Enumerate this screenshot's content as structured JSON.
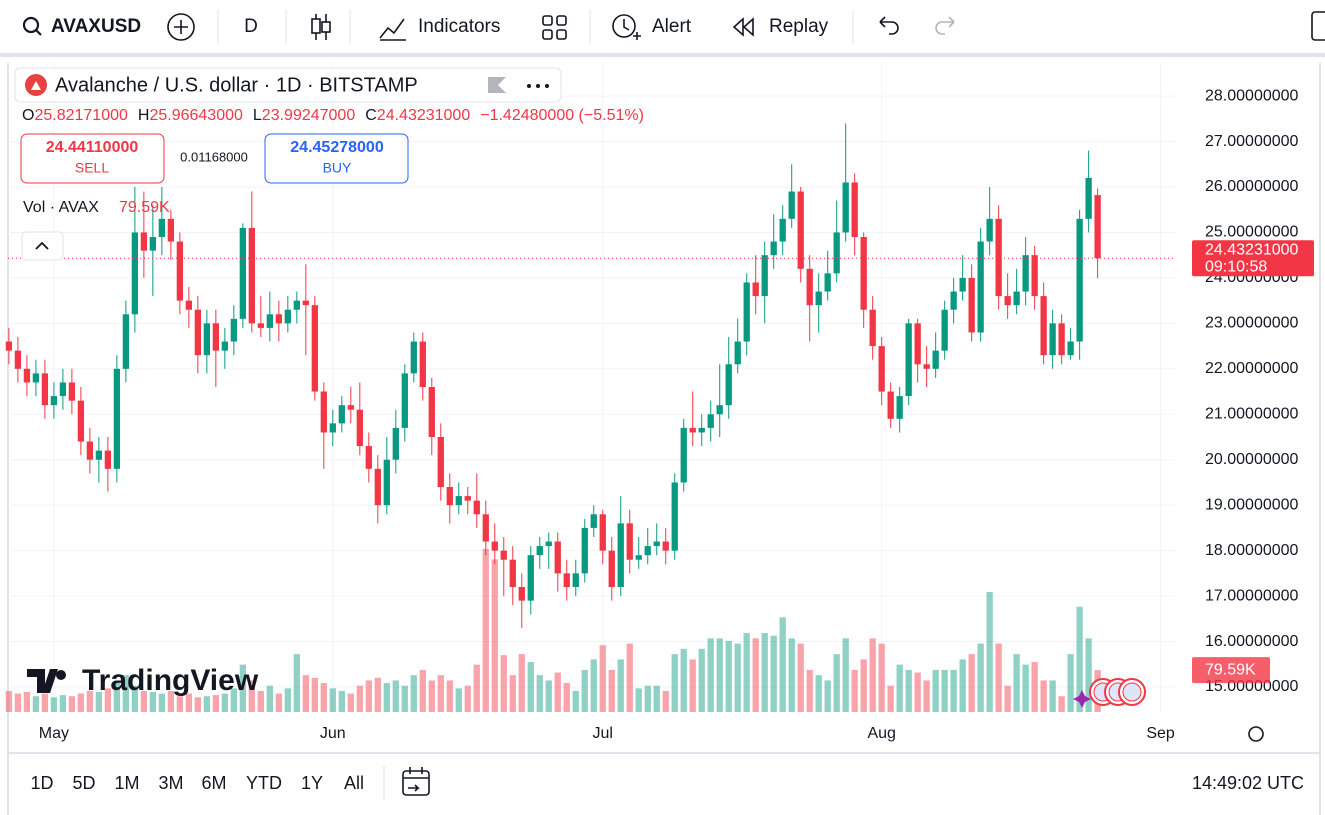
{
  "toolbar": {
    "symbol": "AVAXUSD",
    "interval": "D",
    "indicators": "Indicators",
    "alert": "Alert",
    "replay": "Replay"
  },
  "legend": {
    "title": "Avalanche / U.S. dollar · 1D · BITSTAMP",
    "ohlc": [
      {
        "key": "O",
        "value": "25.82171000"
      },
      {
        "key": "H",
        "value": "25.96643000"
      },
      {
        "key": "L",
        "value": "23.99247000"
      },
      {
        "key": "C",
        "value": "24.43231000"
      }
    ],
    "change": "−1.42480000 (−5.51%)",
    "sell_price": "24.44110000",
    "sell": "SELL",
    "spread": "0.01168000",
    "buy_price": "24.45278000",
    "buy": "BUY",
    "volume_name": "Vol · AVAX",
    "volume_value": "79.59K"
  },
  "watermark": "TradingView",
  "bottom_bar": {
    "ranges": [
      "1D",
      "5D",
      "1M",
      "3M",
      "6M",
      "YTD",
      "1Y",
      "All"
    ],
    "clock": "14:49:02 UTC"
  },
  "chart_data": {
    "type": "candlestick",
    "up_color": "#089981",
    "down_color": "#f23645",
    "open": [
      22.6,
      22.4,
      22.0,
      21.7,
      21.9,
      21.2,
      21.4,
      21.7,
      21.3,
      20.4,
      20.0,
      20.2,
      19.8,
      22.0,
      23.2,
      25.0,
      24.6,
      24.9,
      25.3,
      24.8,
      23.5,
      23.3,
      22.3,
      23.0,
      22.4,
      22.6,
      23.1,
      25.1,
      23.0,
      22.9,
      23.2,
      23.0,
      23.3,
      23.5,
      23.4,
      21.5,
      20.6,
      20.8,
      21.2,
      21.1,
      20.3,
      19.8,
      19.0,
      20.0,
      20.7,
      21.9,
      22.6,
      21.6,
      20.5,
      19.4,
      19.0,
      19.2,
      19.1,
      18.8,
      18.2,
      18.0,
      17.8,
      17.2,
      16.9,
      17.9,
      18.1,
      18.2,
      17.5,
      17.2,
      17.5,
      18.5,
      18.8,
      18.0,
      17.2,
      18.6,
      17.8,
      17.9,
      18.1,
      18.2,
      18.0,
      19.5,
      20.7,
      20.6,
      20.7,
      21.0,
      21.2,
      22.1,
      22.6,
      23.9,
      23.6,
      24.5,
      24.8,
      25.3,
      25.9,
      24.2,
      23.4,
      23.7,
      24.1,
      25.0,
      26.1,
      24.9,
      23.3,
      22.5,
      21.5,
      20.9,
      21.4,
      23.0,
      22.1,
      22.0,
      22.4,
      23.3,
      23.7,
      24.0,
      22.8,
      24.8,
      25.3,
      23.6,
      23.4,
      23.7,
      24.5,
      23.6,
      22.3,
      23.0,
      22.3,
      22.6,
      25.3,
      25.82171
    ],
    "high": [
      22.9,
      22.7,
      22.3,
      22.2,
      22.2,
      21.7,
      22.0,
      22.0,
      21.6,
      20.7,
      20.5,
      20.5,
      22.3,
      23.5,
      26.0,
      25.9,
      25.6,
      26.0,
      25.5,
      25.0,
      23.8,
      23.6,
      23.3,
      23.3,
      22.9,
      23.4,
      25.2,
      25.9,
      23.6,
      23.7,
      23.5,
      23.6,
      23.7,
      24.3,
      23.6,
      21.7,
      21.1,
      21.4,
      21.6,
      21.7,
      20.6,
      20.1,
      20.5,
      21.1,
      22.1,
      22.8,
      22.8,
      21.8,
      20.8,
      19.7,
      19.5,
      19.4,
      19.7,
      19.1,
      18.6,
      18.3,
      18.1,
      17.5,
      18.1,
      18.3,
      18.4,
      18.4,
      17.8,
      17.8,
      18.7,
      19.0,
      18.9,
      18.3,
      19.2,
      18.9,
      18.3,
      18.5,
      18.6,
      18.5,
      19.7,
      20.9,
      21.5,
      21.0,
      21.3,
      22.1,
      22.7,
      23.1,
      24.1,
      24.5,
      24.8,
      25.4,
      25.6,
      26.5,
      26.0,
      24.5,
      24.1,
      24.6,
      25.7,
      27.4,
      26.3,
      25.0,
      23.6,
      22.7,
      21.7,
      21.6,
      23.1,
      23.1,
      22.5,
      22.8,
      23.5,
      24.0,
      24.5,
      24.3,
      25.1,
      26.0,
      25.6,
      24.1,
      24.2,
      24.9,
      24.7,
      23.9,
      23.3,
      23.2,
      22.9,
      25.5,
      26.8,
      25.96643
    ],
    "low": [
      22.1,
      21.7,
      21.4,
      21.4,
      20.9,
      20.9,
      21.1,
      21.0,
      20.1,
      19.7,
      19.5,
      19.3,
      19.5,
      21.7,
      22.8,
      24.0,
      23.6,
      24.5,
      24.4,
      23.2,
      22.9,
      21.9,
      21.9,
      21.6,
      22.0,
      22.3,
      22.9,
      22.8,
      22.7,
      22.6,
      22.6,
      22.8,
      23.0,
      22.3,
      21.3,
      19.8,
      20.3,
      20.6,
      20.8,
      20.1,
      19.5,
      18.6,
      18.8,
      19.7,
      20.4,
      21.7,
      21.3,
      20.1,
      19.1,
      18.6,
      18.8,
      18.8,
      18.5,
      17.9,
      17.7,
      17.0,
      16.8,
      16.3,
      16.6,
      17.6,
      17.6,
      17.1,
      16.9,
      17.0,
      17.3,
      18.3,
      17.7,
      16.9,
      17.0,
      17.5,
      17.6,
      17.7,
      17.9,
      17.7,
      17.8,
      19.3,
      20.3,
      20.3,
      20.4,
      20.5,
      20.9,
      21.9,
      22.3,
      23.2,
      23.0,
      24.2,
      24.5,
      25.1,
      23.9,
      22.6,
      22.8,
      23.5,
      23.9,
      24.8,
      24.5,
      22.9,
      22.2,
      21.2,
      20.7,
      20.6,
      21.2,
      21.7,
      21.6,
      21.8,
      22.2,
      23.0,
      23.5,
      22.6,
      22.6,
      24.5,
      23.3,
      23.1,
      23.2,
      23.4,
      23.3,
      22.1,
      22.0,
      22.1,
      22.2,
      22.2,
      25.0,
      23.99247
    ],
    "close": [
      22.4,
      22.0,
      21.7,
      21.9,
      21.2,
      21.4,
      21.7,
      21.3,
      20.4,
      20.0,
      20.2,
      19.8,
      22.0,
      23.2,
      25.0,
      24.6,
      24.9,
      25.3,
      24.8,
      23.5,
      23.3,
      22.3,
      23.0,
      22.4,
      22.6,
      23.1,
      25.1,
      23.0,
      22.9,
      23.2,
      23.0,
      23.3,
      23.5,
      23.4,
      21.5,
      20.6,
      20.8,
      21.2,
      21.1,
      20.3,
      19.8,
      19.0,
      20.0,
      20.7,
      21.9,
      22.6,
      21.6,
      20.5,
      19.4,
      19.0,
      19.2,
      19.1,
      18.8,
      18.2,
      18.0,
      17.8,
      17.2,
      16.9,
      17.9,
      18.1,
      18.2,
      17.5,
      17.2,
      17.5,
      18.5,
      18.8,
      18.0,
      17.2,
      18.6,
      17.8,
      17.9,
      18.1,
      18.2,
      18.0,
      19.5,
      20.7,
      20.6,
      20.7,
      21.0,
      21.2,
      22.1,
      22.6,
      23.9,
      23.6,
      24.5,
      24.8,
      25.3,
      25.9,
      24.2,
      23.4,
      23.7,
      24.1,
      25.0,
      26.1,
      24.9,
      23.3,
      22.5,
      21.5,
      20.9,
      21.4,
      23.0,
      22.1,
      22.0,
      22.4,
      23.3,
      23.7,
      24.0,
      22.8,
      24.8,
      25.3,
      23.6,
      23.4,
      23.7,
      24.5,
      23.6,
      22.3,
      23.0,
      22.3,
      22.6,
      25.3,
      26.2,
      24.43231
    ],
    "volume": [
      40,
      35,
      38,
      30,
      35,
      28,
      32,
      30,
      35,
      40,
      38,
      45,
      60,
      70,
      50,
      40,
      38,
      35,
      40,
      30,
      35,
      28,
      30,
      32,
      35,
      45,
      90,
      60,
      40,
      50,
      35,
      45,
      110,
      70,
      65,
      55,
      45,
      40,
      35,
      50,
      60,
      65,
      55,
      60,
      50,
      70,
      80,
      60,
      70,
      60,
      45,
      50,
      90,
      310,
      290,
      108,
      70,
      110,
      95,
      70,
      60,
      75,
      55,
      40,
      80,
      100,
      127,
      80,
      100,
      130,
      45,
      50,
      50,
      40,
      110,
      120,
      100,
      120,
      140,
      140,
      135,
      130,
      150,
      140,
      150,
      145,
      180,
      140,
      130,
      80,
      70,
      60,
      110,
      140,
      80,
      100,
      140,
      130,
      50,
      90,
      80,
      75,
      60,
      80,
      80,
      80,
      100,
      110,
      130,
      228,
      130,
      50,
      110,
      90,
      95,
      60,
      60,
      30,
      110,
      200,
      140,
      79.59
    ],
    "last_price_label": "24.43231000",
    "countdown": "09:10:58",
    "last_volume_label": "79.59K",
    "xlim": [
      -0.1,
      129.6
    ],
    "xticks": [
      {
        "value": 5,
        "label": "May"
      },
      {
        "value": 36,
        "label": "Jun"
      },
      {
        "value": 66,
        "label": "Jul"
      },
      {
        "value": 97,
        "label": "Aug"
      },
      {
        "value": 128,
        "label": "Sep"
      }
    ],
    "ylim": [
      14.45,
      28.75
    ],
    "yticks": [
      {
        "value": 15,
        "label": "15.00000000"
      },
      {
        "value": 16,
        "label": "16.00000000"
      },
      {
        "value": 17,
        "label": "17.00000000"
      },
      {
        "value": 18,
        "label": "18.00000000"
      },
      {
        "value": 19,
        "label": "19.00000000"
      },
      {
        "value": 20,
        "label": "20.00000000"
      },
      {
        "value": 21,
        "label": "21.00000000"
      },
      {
        "value": 22,
        "label": "22.00000000"
      },
      {
        "value": 23,
        "label": "23.00000000"
      },
      {
        "value": 24,
        "label": "24.00000000"
      },
      {
        "value": 25,
        "label": "25.00000000"
      },
      {
        "value": 26,
        "label": "26.00000000"
      },
      {
        "value": 27,
        "label": "27.00000000"
      },
      {
        "value": 28,
        "label": "28.00000000"
      }
    ],
    "volume_ylim": [
      0,
      1235
    ],
    "grid": true
  }
}
